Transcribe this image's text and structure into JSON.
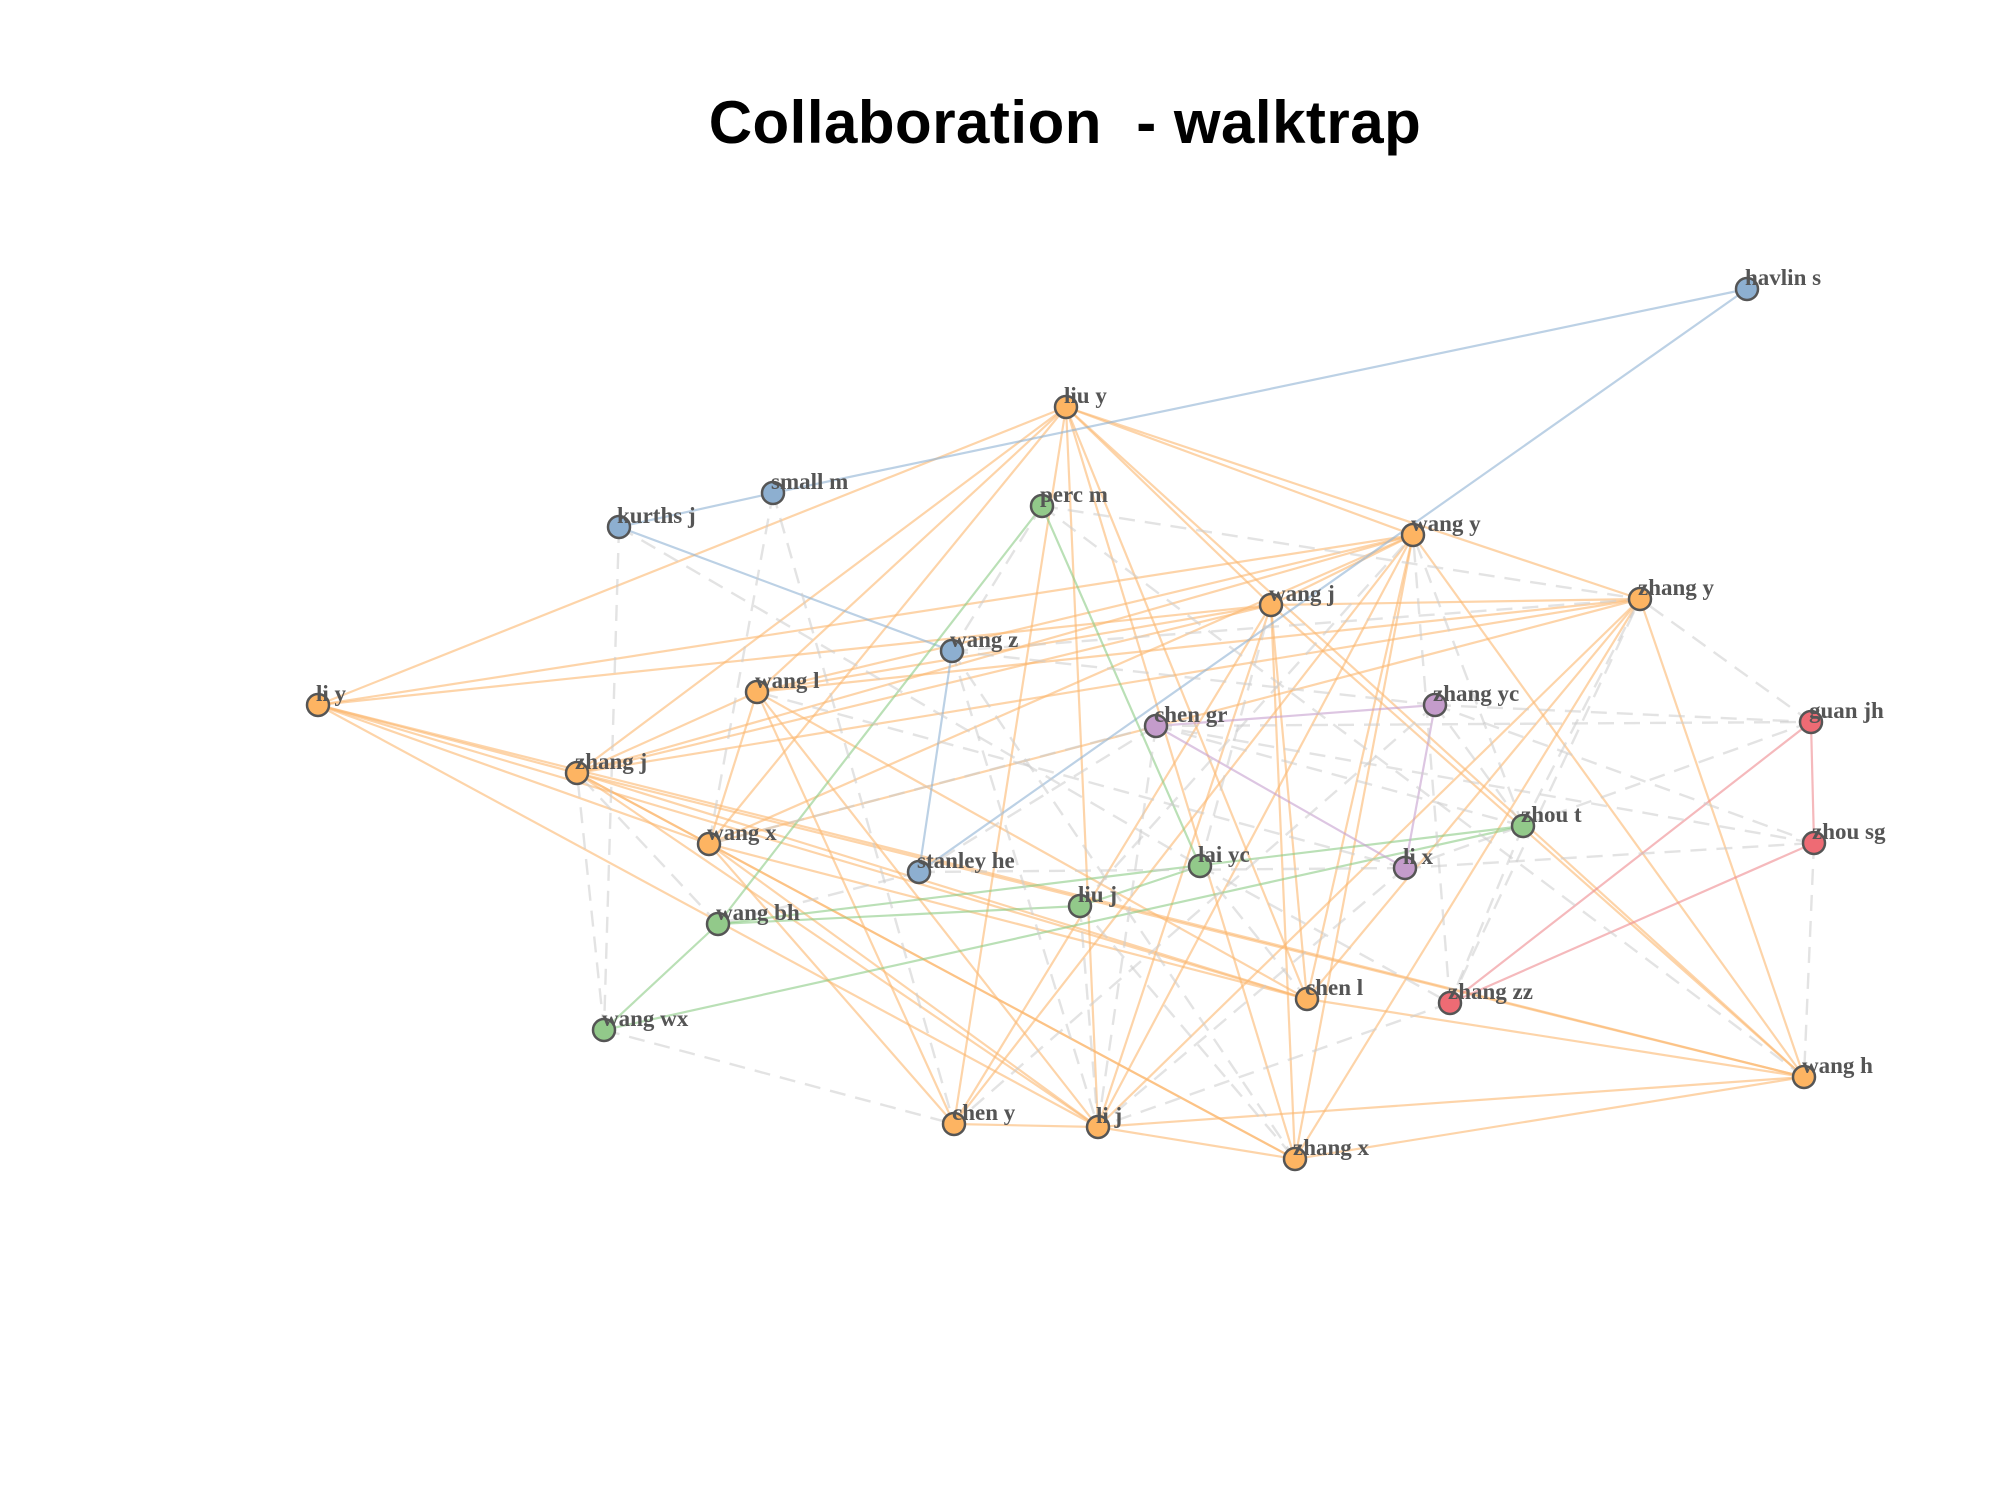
{
  "title": "Collaboration  - walktrap",
  "colors": {
    "cluster_orange": "#FDB462",
    "cluster_blue": "#8DAFD0",
    "cluster_green": "#92C98A",
    "cluster_purple": "#C49CCB",
    "cluster_red": "#EE6B74",
    "edge_orange": "#FBB870",
    "edge_blue": "#8FB2D3",
    "edge_green": "#8CCB85",
    "edge_purple": "#C6A0CE",
    "edge_red": "#EE8A90",
    "edge_between": "#CCCCCC",
    "node_border": "#555555",
    "label": "#555555"
  },
  "nodes": [
    {
      "id": "havlin s",
      "label": "havlin s",
      "cluster": "blue"
    },
    {
      "id": "liu y",
      "label": "liu y",
      "cluster": "orange"
    },
    {
      "id": "small m",
      "label": "small m",
      "cluster": "blue"
    },
    {
      "id": "kurths j",
      "label": "kurths j",
      "cluster": "blue"
    },
    {
      "id": "perc m",
      "label": "perc m",
      "cluster": "green"
    },
    {
      "id": "wang y",
      "label": "wang y",
      "cluster": "orange"
    },
    {
      "id": "wang j",
      "label": "wang j",
      "cluster": "orange"
    },
    {
      "id": "zhang y",
      "label": "zhang y",
      "cluster": "orange"
    },
    {
      "id": "wang z",
      "label": "wang z",
      "cluster": "blue"
    },
    {
      "id": "li y",
      "label": "li y",
      "cluster": "orange"
    },
    {
      "id": "wang l",
      "label": "wang l",
      "cluster": "orange"
    },
    {
      "id": "chen gr",
      "label": "chen gr",
      "cluster": "purple"
    },
    {
      "id": "zhang yc",
      "label": "zhang yc",
      "cluster": "purple"
    },
    {
      "id": "guan jh",
      "label": "guan jh",
      "cluster": "red"
    },
    {
      "id": "zhang j",
      "label": "zhang j",
      "cluster": "orange"
    },
    {
      "id": "zhou t",
      "label": "zhou t",
      "cluster": "green"
    },
    {
      "id": "zhou sg",
      "label": "zhou sg",
      "cluster": "red"
    },
    {
      "id": "wang x",
      "label": "wang x",
      "cluster": "orange"
    },
    {
      "id": "stanley he",
      "label": "stanley he",
      "cluster": "blue"
    },
    {
      "id": "lai yc",
      "label": "lai yc",
      "cluster": "green"
    },
    {
      "id": "li x",
      "label": "li x",
      "cluster": "purple"
    },
    {
      "id": "liu j",
      "label": "liu j",
      "cluster": "green"
    },
    {
      "id": "wang bh",
      "label": "wang bh",
      "cluster": "green"
    },
    {
      "id": "chen l",
      "label": "chen l",
      "cluster": "orange"
    },
    {
      "id": "zhang zz",
      "label": "zhang zz",
      "cluster": "red"
    },
    {
      "id": "wang wx",
      "label": "wang wx",
      "cluster": "green"
    },
    {
      "id": "wang h",
      "label": "wang h",
      "cluster": "orange"
    },
    {
      "id": "chen y",
      "label": "chen y",
      "cluster": "orange"
    },
    {
      "id": "li j",
      "label": "li j",
      "cluster": "orange"
    },
    {
      "id": "zhang x",
      "label": "zhang x",
      "cluster": "orange"
    }
  ],
  "edges": [
    [
      "liu y",
      "li y"
    ],
    [
      "liu y",
      "wang l"
    ],
    [
      "liu y",
      "zhang j"
    ],
    [
      "liu y",
      "wang x"
    ],
    [
      "liu y",
      "wang y"
    ],
    [
      "liu y",
      "wang j"
    ],
    [
      "liu y",
      "chen l"
    ],
    [
      "liu y",
      "li j"
    ],
    [
      "liu y",
      "zhang x"
    ],
    [
      "liu y",
      "wang h"
    ],
    [
      "liu y",
      "chen y"
    ],
    [
      "liu y",
      "zhang y"
    ],
    [
      "wang y",
      "wang l"
    ],
    [
      "wang y",
      "zhang j"
    ],
    [
      "wang y",
      "wang x"
    ],
    [
      "wang y",
      "li j"
    ],
    [
      "wang y",
      "chen y"
    ],
    [
      "wang y",
      "zhang x"
    ],
    [
      "wang y",
      "wang h"
    ],
    [
      "wang y",
      "chen l"
    ],
    [
      "wang y",
      "wang j"
    ],
    [
      "wang y",
      "li y"
    ],
    [
      "wang j",
      "li y"
    ],
    [
      "wang j",
      "wang l"
    ],
    [
      "wang j",
      "zhang j"
    ],
    [
      "wang j",
      "zhang y"
    ],
    [
      "wang j",
      "chen l"
    ],
    [
      "wang j",
      "li j"
    ],
    [
      "wang j",
      "zhang x"
    ],
    [
      "wang j",
      "wang h"
    ],
    [
      "wang j",
      "chen y"
    ],
    [
      "zhang y",
      "wang l"
    ],
    [
      "zhang y",
      "zhang j"
    ],
    [
      "zhang y",
      "wang x"
    ],
    [
      "zhang y",
      "li j"
    ],
    [
      "zhang y",
      "wang h"
    ],
    [
      "zhang y",
      "zhang x"
    ],
    [
      "zhang y",
      "chen l"
    ],
    [
      "li y",
      "zhang j"
    ],
    [
      "li y",
      "wang x"
    ],
    [
      "li y",
      "chen l"
    ],
    [
      "li y",
      "li j"
    ],
    [
      "li y",
      "wang h"
    ],
    [
      "wang l",
      "zhang j"
    ],
    [
      "wang l",
      "wang x"
    ],
    [
      "wang l",
      "chen l"
    ],
    [
      "wang l",
      "li j"
    ],
    [
      "wang l",
      "chen y"
    ],
    [
      "zhang j",
      "wang x"
    ],
    [
      "zhang j",
      "chen l"
    ],
    [
      "zhang j",
      "li j"
    ],
    [
      "zhang j",
      "zhang x"
    ],
    [
      "zhang j",
      "wang h"
    ],
    [
      "wang x",
      "chen l"
    ],
    [
      "wang x",
      "li j"
    ],
    [
      "wang x",
      "chen y"
    ],
    [
      "wang x",
      "zhang x"
    ],
    [
      "chen l",
      "wang h"
    ],
    [
      "li j",
      "wang h"
    ],
    [
      "zhang x",
      "wang h"
    ],
    [
      "li j",
      "zhang x"
    ],
    [
      "chen y",
      "li j"
    ],
    [
      "havlin s",
      "small m"
    ],
    [
      "havlin s",
      "stanley he"
    ],
    [
      "kurths j",
      "small m"
    ],
    [
      "kurths j",
      "wang z"
    ],
    [
      "wang z",
      "stanley he"
    ],
    [
      "stanley he",
      "chen gr"
    ],
    [
      "perc m",
      "wang bh"
    ],
    [
      "perc m",
      "lai yc"
    ],
    [
      "wang bh",
      "zhou t"
    ],
    [
      "wang wx",
      "zhou t"
    ],
    [
      "wang bh",
      "liu j"
    ],
    [
      "liu j",
      "lai yc"
    ],
    [
      "chen gr",
      "zhang yc"
    ],
    [
      "chen gr",
      "li x"
    ],
    [
      "zhang yc",
      "li x"
    ],
    [
      "guan jh",
      "zhou sg"
    ],
    [
      "guan jh",
      "zhang zz"
    ],
    [
      "zhou sg",
      "zhang zz"
    ],
    [
      "kurths j",
      "wang wx"
    ],
    [
      "kurths j",
      "lai yc"
    ],
    [
      "small m",
      "wang x"
    ],
    [
      "small m",
      "chen y"
    ],
    [
      "perc m",
      "wang h"
    ],
    [
      "perc m",
      "zhang y"
    ],
    [
      "perc m",
      "wang z"
    ],
    [
      "wang z",
      "zhang yc"
    ],
    [
      "wang z",
      "li j"
    ],
    [
      "wang z",
      "zhang x"
    ],
    [
      "chen gr",
      "guan jh"
    ],
    [
      "chen gr",
      "zhou sg"
    ],
    [
      "chen gr",
      "zhou t"
    ],
    [
      "chen gr",
      "li j"
    ],
    [
      "chen gr",
      "wang x"
    ],
    [
      "zhang yc",
      "guan jh"
    ],
    [
      "zhang yc",
      "zhou sg"
    ],
    [
      "zhang yc",
      "zhou t"
    ],
    [
      "zhang yc",
      "chen y"
    ],
    [
      "li x",
      "guan jh"
    ],
    [
      "li x",
      "zhou sg"
    ],
    [
      "li x",
      "wang l"
    ],
    [
      "li x",
      "li j"
    ],
    [
      "lai yc",
      "wang j"
    ],
    [
      "lai yc",
      "chen l"
    ],
    [
      "lai yc",
      "zhang zz"
    ],
    [
      "zhou t",
      "zhang zz"
    ],
    [
      "zhou t",
      "wang y"
    ],
    [
      "zhou t",
      "zhang y"
    ],
    [
      "wang bh",
      "wang wx"
    ],
    [
      "wang bh",
      "zhang j"
    ],
    [
      "wang wx",
      "chen y"
    ],
    [
      "wang wx",
      "zhang j"
    ],
    [
      "liu j",
      "zhang x"
    ],
    [
      "liu j",
      "li j"
    ],
    [
      "liu j",
      "wang y"
    ],
    [
      "stanley he",
      "wang bh"
    ],
    [
      "stanley he",
      "li x"
    ],
    [
      "wang z",
      "zhang y"
    ],
    [
      "zhang zz",
      "zhang y"
    ],
    [
      "zhang zz",
      "li j"
    ],
    [
      "zhang zz",
      "wang y"
    ],
    [
      "guan jh",
      "zhang y"
    ],
    [
      "zhou sg",
      "wang h"
    ]
  ]
}
